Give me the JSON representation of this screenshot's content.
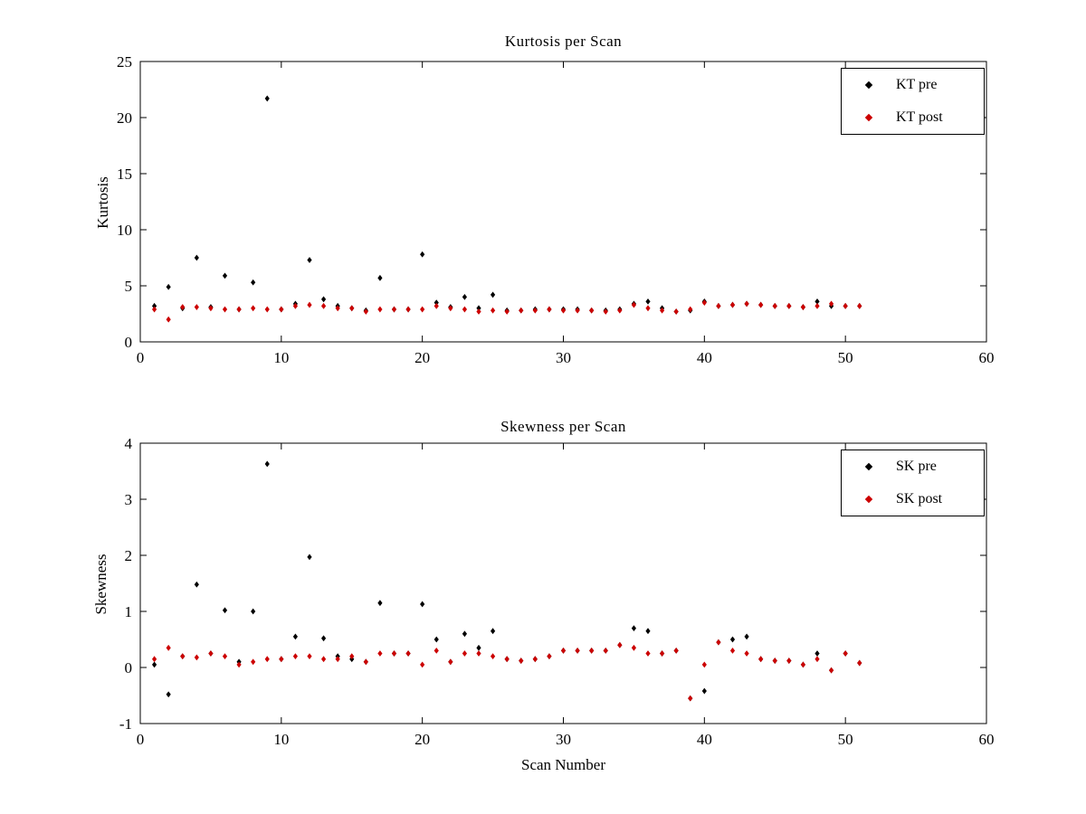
{
  "figure": {
    "background": "#ffffff"
  },
  "colors": {
    "pre": "#000000",
    "post": "#cc0000",
    "axis": "#000000"
  },
  "chart_data": [
    {
      "type": "scatter",
      "title": "Kurtosis per Scan",
      "xlabel": "",
      "ylabel": "Kurtosis",
      "marker": "diamond",
      "grid": false,
      "legend_position": "top-right",
      "xlim": [
        0,
        60
      ],
      "ylim": [
        0,
        25
      ],
      "xticks": [
        0,
        10,
        20,
        30,
        40,
        50,
        60
      ],
      "yticks": [
        0,
        5,
        10,
        15,
        20,
        25
      ],
      "x": [
        1,
        2,
        3,
        4,
        5,
        6,
        7,
        8,
        9,
        10,
        11,
        12,
        13,
        14,
        15,
        16,
        17,
        18,
        19,
        20,
        21,
        22,
        23,
        24,
        25,
        26,
        27,
        28,
        29,
        30,
        31,
        32,
        33,
        34,
        35,
        36,
        37,
        38,
        39,
        40,
        41,
        42,
        43,
        44,
        45,
        46,
        47,
        48,
        49,
        50,
        51
      ],
      "series": [
        {
          "name": "KT pre",
          "color": "#000000",
          "values": [
            3.2,
            4.9,
            3.0,
            7.5,
            3.1,
            5.9,
            2.9,
            5.3,
            21.7,
            2.9,
            3.4,
            7.3,
            3.8,
            3.2,
            3.0,
            2.8,
            5.7,
            2.9,
            2.9,
            7.8,
            3.5,
            3.1,
            4.0,
            3.0,
            4.2,
            2.8,
            2.8,
            2.9,
            2.9,
            2.9,
            2.9,
            2.8,
            2.8,
            2.9,
            3.4,
            3.6,
            3.0,
            2.7,
            2.8,
            3.6,
            3.2,
            3.3,
            3.4,
            3.3,
            3.2,
            3.2,
            3.1,
            3.6,
            3.2,
            3.2,
            3.2
          ]
        },
        {
          "name": "KT post",
          "color": "#cc0000",
          "values": [
            2.9,
            2.0,
            3.1,
            3.1,
            3.0,
            2.9,
            2.9,
            3.0,
            2.9,
            2.9,
            3.2,
            3.3,
            3.2,
            3.0,
            3.0,
            2.7,
            2.9,
            2.9,
            2.9,
            2.9,
            3.2,
            3.0,
            2.9,
            2.7,
            2.8,
            2.7,
            2.8,
            2.8,
            2.9,
            2.8,
            2.8,
            2.8,
            2.7,
            2.8,
            3.3,
            3.0,
            2.8,
            2.7,
            2.9,
            3.5,
            3.2,
            3.3,
            3.4,
            3.3,
            3.2,
            3.2,
            3.1,
            3.2,
            3.4,
            3.2,
            3.2
          ]
        }
      ]
    },
    {
      "type": "scatter",
      "title": "Skewness per Scan",
      "xlabel": "Scan Number",
      "ylabel": "Skewness",
      "marker": "diamond",
      "grid": false,
      "legend_position": "top-right",
      "xlim": [
        0,
        60
      ],
      "ylim": [
        -1,
        4
      ],
      "xticks": [
        0,
        10,
        20,
        30,
        40,
        50,
        60
      ],
      "yticks": [
        -1,
        0,
        1,
        2,
        3,
        4
      ],
      "x": [
        1,
        2,
        3,
        4,
        5,
        6,
        7,
        8,
        9,
        10,
        11,
        12,
        13,
        14,
        15,
        16,
        17,
        18,
        19,
        20,
        21,
        22,
        23,
        24,
        25,
        26,
        27,
        28,
        29,
        30,
        31,
        32,
        33,
        34,
        35,
        36,
        37,
        38,
        39,
        40,
        41,
        42,
        43,
        44,
        45,
        46,
        47,
        48,
        49,
        50,
        51
      ],
      "series": [
        {
          "name": "SK pre",
          "color": "#000000",
          "values": [
            0.05,
            -0.48,
            0.2,
            1.48,
            0.25,
            1.02,
            0.1,
            1.0,
            3.63,
            0.15,
            0.55,
            1.97,
            0.52,
            0.2,
            0.15,
            0.1,
            1.15,
            0.25,
            0.25,
            1.13,
            0.5,
            0.1,
            0.6,
            0.35,
            0.65,
            0.15,
            0.12,
            0.15,
            0.2,
            0.3,
            0.3,
            0.3,
            0.3,
            0.4,
            0.7,
            0.65,
            0.25,
            0.3,
            -0.55,
            -0.42,
            0.45,
            0.5,
            0.55,
            0.15,
            0.12,
            0.12,
            0.05,
            0.25,
            -0.05,
            0.25,
            0.08
          ]
        },
        {
          "name": "SK post",
          "color": "#cc0000",
          "values": [
            0.15,
            0.35,
            0.2,
            0.18,
            0.25,
            0.2,
            0.05,
            0.1,
            0.15,
            0.15,
            0.2,
            0.2,
            0.15,
            0.15,
            0.2,
            0.1,
            0.25,
            0.25,
            0.25,
            0.05,
            0.3,
            0.1,
            0.25,
            0.25,
            0.2,
            0.15,
            0.12,
            0.15,
            0.2,
            0.3,
            0.3,
            0.3,
            0.3,
            0.4,
            0.35,
            0.25,
            0.25,
            0.3,
            -0.55,
            0.05,
            0.45,
            0.3,
            0.25,
            0.15,
            0.12,
            0.12,
            0.05,
            0.15,
            -0.05,
            0.25,
            0.08
          ]
        }
      ]
    }
  ]
}
